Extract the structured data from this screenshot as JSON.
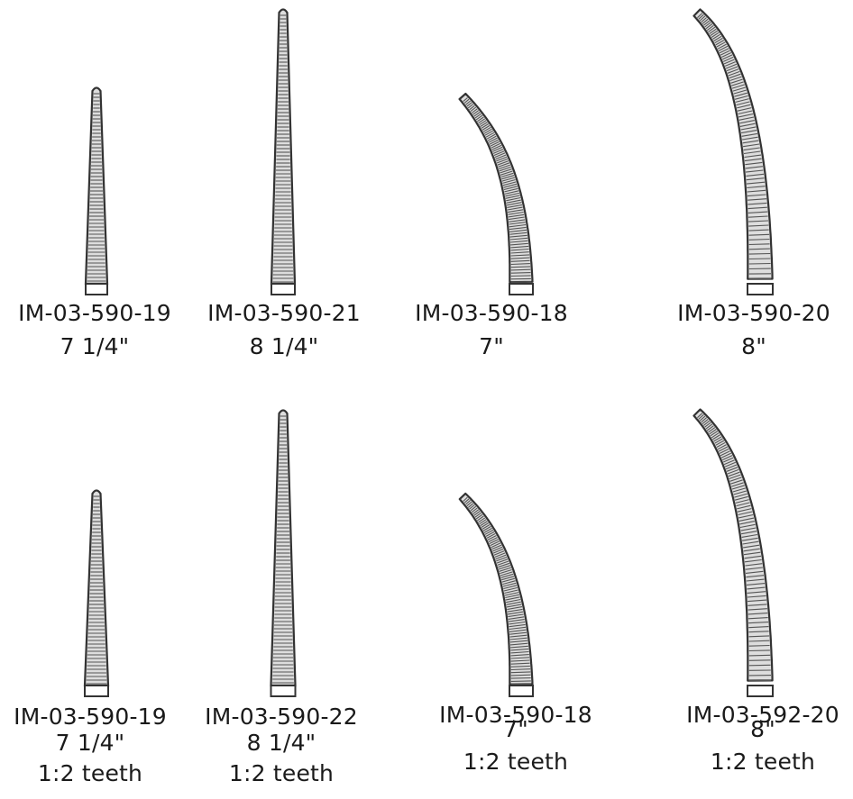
{
  "instruments": [
    {
      "id": "IM-03-590-19",
      "size": "7 1/4\"",
      "teeth": "",
      "shape": "straight"
    },
    {
      "id": "IM-03-590-21",
      "size": "8 1/4\"",
      "teeth": "",
      "shape": "straight"
    },
    {
      "id": "IM-03-590-18",
      "size": "7\"",
      "teeth": "",
      "shape": "curved"
    },
    {
      "id": "IM-03-590-20",
      "size": "8\"",
      "teeth": "",
      "shape": "curved"
    },
    {
      "id": "IM-03-590-19",
      "size": "7 1/4\"",
      "teeth": "1:2 teeth",
      "shape": "straight"
    },
    {
      "id": "IM-03-590-22",
      "size": "8 1/4\"",
      "teeth": "1:2 teeth",
      "shape": "straight"
    },
    {
      "id": "IM-03-590-18",
      "size": "7\"",
      "teeth": "1:2 teeth",
      "shape": "curved"
    },
    {
      "id": "IM-03-592-20",
      "size": "8\"",
      "teeth": "1:2 teeth",
      "shape": "curved"
    }
  ]
}
